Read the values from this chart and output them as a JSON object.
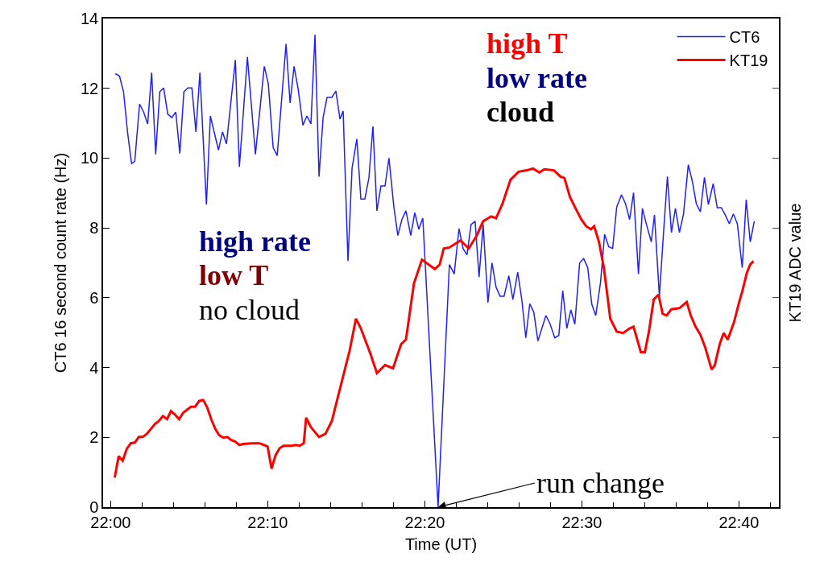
{
  "chart_data": {
    "type": "line",
    "xlabel": "Time (UT)",
    "ylabel": "CT6 16 second count rate (Hz)",
    "y2label": "KT19 ADC value",
    "xlim": [
      21.992,
      22.709
    ],
    "xticks": [
      {
        "value": 22.0,
        "label": "22:00"
      },
      {
        "value": 22.16667,
        "label": "22:10"
      },
      {
        "value": 22.33333,
        "label": "22:20"
      },
      {
        "value": 22.5,
        "label": "22:30"
      },
      {
        "value": 22.66667,
        "label": "22:40"
      }
    ],
    "ylim": [
      0,
      14
    ],
    "yticks": [
      0,
      2,
      4,
      6,
      8,
      10,
      12,
      14
    ],
    "legend": "top right",
    "marker": "none",
    "line_style": "solid",
    "series": [
      {
        "name": "CT6",
        "color": "#1f1fff",
        "x": [
          22.0051,
          22.0094,
          22.0137,
          22.0179,
          22.0222,
          22.0256,
          22.0307,
          22.035,
          22.0393,
          22.0435,
          22.0478,
          22.0521,
          22.0563,
          22.0606,
          22.0649,
          22.0691,
          22.0734,
          22.0777,
          22.0819,
          22.0862,
          22.0905,
          22.0947,
          22.1016,
          22.1058,
          22.1144,
          22.1187,
          22.1229,
          22.1323,
          22.1366,
          22.1451,
          22.1536,
          22.163,
          22.1673,
          22.1724,
          22.1767,
          22.1861,
          22.1904,
          22.1946,
          22.1989,
          22.204,
          22.2083,
          22.2125,
          22.2168,
          22.2211,
          22.2254,
          22.2296,
          22.2347,
          22.239,
          22.2433,
          22.2467,
          22.2518,
          22.2561,
          22.2612,
          22.2655,
          22.2697,
          22.274,
          22.2783,
          22.2825,
          22.2868,
          22.2911,
          22.2953,
          22.3005,
          22.3047,
          22.309,
          22.3133,
          22.3184,
          22.3227,
          22.3269,
          22.3312,
          22.3474,
          22.3594,
          22.3645,
          22.3696,
          22.3739,
          22.3781,
          22.3824,
          22.3867,
          22.3909,
          22.3952,
          22.4003,
          22.4046,
          22.4089,
          22.4131,
          22.4174,
          22.4225,
          22.4268,
          22.4319,
          22.4362,
          22.4405,
          22.4447,
          22.449,
          22.4533,
          22.4575,
          22.4618,
          22.4661,
          22.4712,
          22.4755,
          22.4797,
          22.484,
          22.4883,
          22.4925,
          22.4976,
          22.5019,
          22.5062,
          22.5105,
          22.5147,
          22.5198,
          22.5241,
          22.5284,
          22.5326,
          22.5369,
          22.542,
          22.5463,
          22.5506,
          22.5548,
          22.56,
          22.5642,
          22.5685,
          22.5736,
          22.577,
          22.5822,
          22.5864,
          22.5907,
          22.595,
          22.5992,
          22.6035,
          22.6078,
          22.6129,
          22.6172,
          22.6214,
          22.6257,
          22.63,
          22.6342,
          22.6393,
          22.6436,
          22.6479,
          22.6521,
          22.6564,
          22.6607,
          22.6649,
          22.6701,
          22.6743,
          22.6786,
          22.6829
        ],
        "values": [
          12.42,
          12.35,
          11.9,
          10.75,
          9.84,
          9.91,
          11.55,
          11.32,
          10.98,
          12.45,
          10.11,
          11.9,
          12.01,
          11.26,
          11.16,
          11.32,
          10.13,
          11.9,
          12.01,
          12.01,
          10.75,
          12.45,
          8.67,
          11.21,
          10.23,
          10.75,
          10.41,
          12.81,
          9.75,
          12.9,
          10.11,
          12.63,
          12.13,
          10.3,
          10.07,
          13.27,
          11.58,
          12.63,
          11.99,
          10.94,
          11.21,
          10.98,
          13.54,
          9.47,
          11.16,
          11.74,
          11.74,
          11.92,
          11.12,
          11.35,
          7.05,
          9.7,
          10.55,
          8.83,
          8.83,
          9.43,
          10.91,
          8.49,
          9.2,
          9.2,
          10.0,
          8.6,
          7.78,
          8.24,
          8.49,
          7.78,
          8.44,
          7.96,
          8.28,
          0,
          6.95,
          6.68,
          7.98,
          7.41,
          7.23,
          8.1,
          8.19,
          6.59,
          8.1,
          5.86,
          7.0,
          6.31,
          6.04,
          6.04,
          6.63,
          5.95,
          6.73,
          5.95,
          4.85,
          5.83,
          5.58,
          4.76,
          5.12,
          5.49,
          5.26,
          4.85,
          4.92,
          6.2,
          5.12,
          5.65,
          5.24,
          7.0,
          7.12,
          6.86,
          5.81,
          5.49,
          6.45,
          7.82,
          7.46,
          7.41,
          8.6,
          8.95,
          8.69,
          8.24,
          9.01,
          6.68,
          8.56,
          8.1,
          7.6,
          8.37,
          6.04,
          7.78,
          9.47,
          7.87,
          8.56,
          7.87,
          8.4,
          9.81,
          9.33,
          8.69,
          8.46,
          9.45,
          8.67,
          9.27,
          8.58,
          8.58,
          8.37,
          8.12,
          8.4,
          8.12,
          6.86,
          8.81,
          7.6,
          8.19
        ]
      },
      {
        "name": "KT19",
        "color": "#ff0000",
        "x": [
          22.0043,
          22.0085,
          22.0128,
          22.0171,
          22.0213,
          22.0256,
          22.0299,
          22.0341,
          22.0384,
          22.0427,
          22.0469,
          22.0512,
          22.0555,
          22.0598,
          22.064,
          22.0683,
          22.0726,
          22.0768,
          22.0811,
          22.0854,
          22.0896,
          22.0939,
          22.0982,
          22.1024,
          22.1067,
          22.111,
          22.1152,
          22.1195,
          22.1238,
          22.128,
          22.1323,
          22.1366,
          22.1408,
          22.1494,
          22.1579,
          22.1665,
          22.1707,
          22.175,
          22.1793,
          22.1835,
          22.1921,
          22.1963,
          22.2006,
          22.2049,
          22.2074,
          22.2125,
          22.2211,
          22.2279,
          22.2347,
          22.245,
          22.2535,
          22.2603,
          22.2655,
          22.2757,
          22.2825,
          22.2911,
          22.2996,
          22.3082,
          22.3133,
          22.3218,
          22.3303,
          22.344,
          22.3491,
          22.3534,
          22.3594,
          22.3713,
          22.3799,
          22.3884,
          22.3952,
          22.4037,
          22.4089,
          22.4157,
          22.4242,
          22.4328,
          22.4413,
          22.4481,
          22.455,
          22.4601,
          22.4703,
          22.4772,
          22.4814,
          22.4874,
          22.4925,
          22.4994,
          22.5045,
          22.5096,
          22.513,
          22.5181,
          22.5233,
          22.5301,
          22.5369,
          22.5437,
          22.5506,
          22.5548,
          22.5625,
          22.5668,
          22.5711,
          22.5762,
          22.5813,
          22.5856,
          22.5898,
          22.595,
          22.6035,
          22.6112,
          22.6155,
          22.6206,
          22.6257,
          22.6308,
          22.6376,
          22.641,
          22.6462,
          22.6504,
          22.6547,
          22.6615,
          22.6667,
          22.6701,
          22.6752,
          22.6786,
          22.682
        ],
        "values": [
          0.85,
          1.46,
          1.33,
          1.67,
          1.83,
          1.85,
          2.01,
          2.01,
          2.1,
          2.24,
          2.38,
          2.47,
          2.61,
          2.52,
          2.75,
          2.65,
          2.52,
          2.7,
          2.79,
          2.88,
          2.88,
          3.04,
          3.07,
          2.86,
          2.52,
          2.24,
          2.06,
          1.99,
          2.01,
          1.92,
          1.88,
          1.78,
          1.81,
          1.83,
          1.83,
          1.74,
          1.1,
          1.49,
          1.69,
          1.76,
          1.76,
          1.78,
          1.76,
          1.83,
          2.56,
          2.29,
          2.01,
          2.1,
          2.47,
          3.57,
          4.48,
          5.4,
          5.12,
          4.39,
          3.84,
          4.07,
          3.98,
          4.67,
          4.8,
          6.41,
          7.09,
          6.82,
          6.95,
          7.41,
          7.44,
          7.64,
          7.41,
          7.78,
          8.19,
          8.33,
          8.28,
          8.69,
          9.38,
          9.61,
          9.65,
          9.7,
          9.59,
          9.68,
          9.65,
          9.47,
          9.43,
          8.88,
          8.6,
          8.24,
          8.05,
          7.96,
          8.05,
          7.6,
          6.86,
          5.4,
          5.03,
          4.99,
          5.12,
          5.17,
          4.44,
          4.44,
          5.03,
          5.95,
          6.09,
          5.54,
          5.49,
          5.67,
          5.7,
          5.88,
          5.49,
          5.17,
          4.94,
          4.58,
          3.94,
          4.07,
          4.67,
          4.99,
          4.8,
          5.31,
          5.86,
          6.18,
          6.73,
          6.95,
          7.05
        ]
      }
    ],
    "annotations": [
      "high T",
      "low rate",
      "cloud",
      "high rate",
      "low T",
      "no cloud",
      {
        "text": "run change",
        "x": 22.3474,
        "y": 0
      }
    ]
  }
}
